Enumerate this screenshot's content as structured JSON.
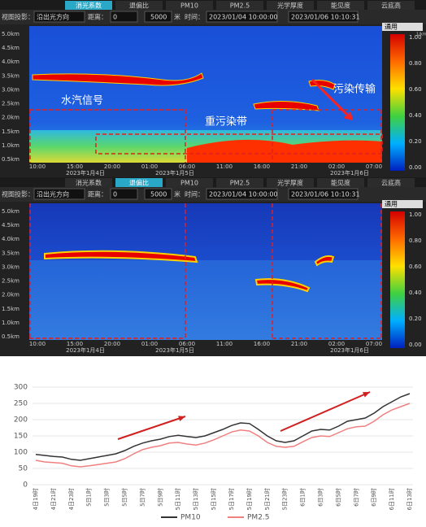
{
  "panels": [
    {
      "tabs": [
        "消光系数",
        "退偏比",
        "PM10",
        "PM2.5",
        "光学厚度",
        "能见度",
        "云底高"
      ],
      "active_tab": 0,
      "toolbar": {
        "view_label": "视图投影：",
        "view_value": "沿出光方向",
        "distance_label": "距离：",
        "distance_from": "0",
        "distance_to": "5000",
        "distance_unit": "米",
        "time_label": "时间：",
        "time_from": "2023/01/04 10:00:00",
        "time_to": "2023/01/06 10:10:31"
      },
      "y_labels": [
        "5.0km",
        "4.5km",
        "4.0km",
        "3.5km",
        "3.0km",
        "2.5km",
        "2.0km",
        "1.5km",
        "1.0km",
        "0.5km"
      ],
      "time_labels": [
        "10:00",
        "15:00",
        "20:00",
        "01:00",
        "06:00",
        "11:00",
        "16:00",
        "21:00",
        "02:00",
        "07:00"
      ],
      "date_labels": [
        "2023年1月4日",
        "2023年1月5日",
        "2023年1月6日"
      ],
      "colorbar": {
        "mode": "通用",
        "unit": "1/km",
        "ticks": [
          "1.00",
          "0.80",
          "0.60",
          "0.40",
          "0.20",
          "0.00"
        ]
      },
      "annotations": [
        "水汽信号",
        "重污染带",
        "污染传输"
      ]
    },
    {
      "tabs": [
        "消光系数",
        "退偏比",
        "PM10",
        "PM2.5",
        "光学厚度",
        "能见度",
        "云底高"
      ],
      "active_tab": 1,
      "toolbar": {
        "view_label": "视图投影：",
        "view_value": "沿出光方向",
        "distance_label": "距离：",
        "distance_from": "0",
        "distance_to": "5000",
        "distance_unit": "米",
        "time_label": "时间：",
        "time_from": "2023/01/04 10:00:00",
        "time_to": "2023/01/06 10:10:31"
      },
      "y_labels": [
        "5.0km",
        "4.5km",
        "4.0km",
        "3.5km",
        "3.0km",
        "2.5km",
        "2.0km",
        "1.5km",
        "1.0km",
        "0.5km"
      ],
      "time_labels": [
        "10:00",
        "15:00",
        "20:00",
        "01:00",
        "06:00",
        "11:00",
        "16:00",
        "21:00",
        "02:00",
        "07:00"
      ],
      "date_labels": [
        "2023年1月4日",
        "2023年1月5日",
        "2023年1月6日"
      ],
      "colorbar": {
        "mode": "通用",
        "ticks": [
          "1.00",
          "0.80",
          "0.60",
          "0.40",
          "0.20",
          "0.00"
        ]
      },
      "annotations": []
    }
  ],
  "chart_data": {
    "type": "line",
    "categories": [
      "4日19时",
      null,
      "4日21时",
      null,
      "4日23时",
      null,
      "5日1时",
      null,
      "5日3时",
      null,
      "5日5时",
      null,
      "5日7时",
      null,
      "5日9时",
      null,
      "5日11时",
      null,
      "5日13时",
      null,
      "5日15时",
      null,
      "5日17时",
      null,
      "5日19时",
      null,
      "5日21时",
      null,
      "5日23时",
      null,
      "6日1时",
      null,
      "6日3时",
      null,
      "6日5时",
      null,
      "6日7时",
      null,
      "6日9时",
      null,
      "6日11时",
      null,
      "6日13时"
    ],
    "series": [
      {
        "name": "PM10",
        "color": "#333333",
        "values": [
          93,
          90,
          87,
          85,
          78,
          75,
          80,
          85,
          90,
          95,
          105,
          118,
          128,
          135,
          140,
          148,
          152,
          148,
          145,
          150,
          160,
          170,
          182,
          190,
          188,
          170,
          150,
          135,
          130,
          135,
          150,
          165,
          170,
          168,
          180,
          195,
          200,
          205,
          220,
          240,
          255,
          270,
          280
        ]
      },
      {
        "name": "PM2.5",
        "color": "#f08080",
        "values": [
          75,
          70,
          68,
          66,
          58,
          55,
          58,
          62,
          66,
          70,
          80,
          95,
          108,
          115,
          120,
          128,
          130,
          125,
          122,
          128,
          138,
          150,
          162,
          168,
          165,
          150,
          130,
          118,
          115,
          118,
          132,
          145,
          150,
          148,
          160,
          172,
          178,
          180,
          195,
          215,
          230,
          240,
          250
        ]
      }
    ],
    "ylim": [
      0,
      300
    ],
    "yticks": [
      0,
      50,
      100,
      150,
      200,
      250,
      300
    ],
    "grid": true,
    "legend": "bottom"
  }
}
